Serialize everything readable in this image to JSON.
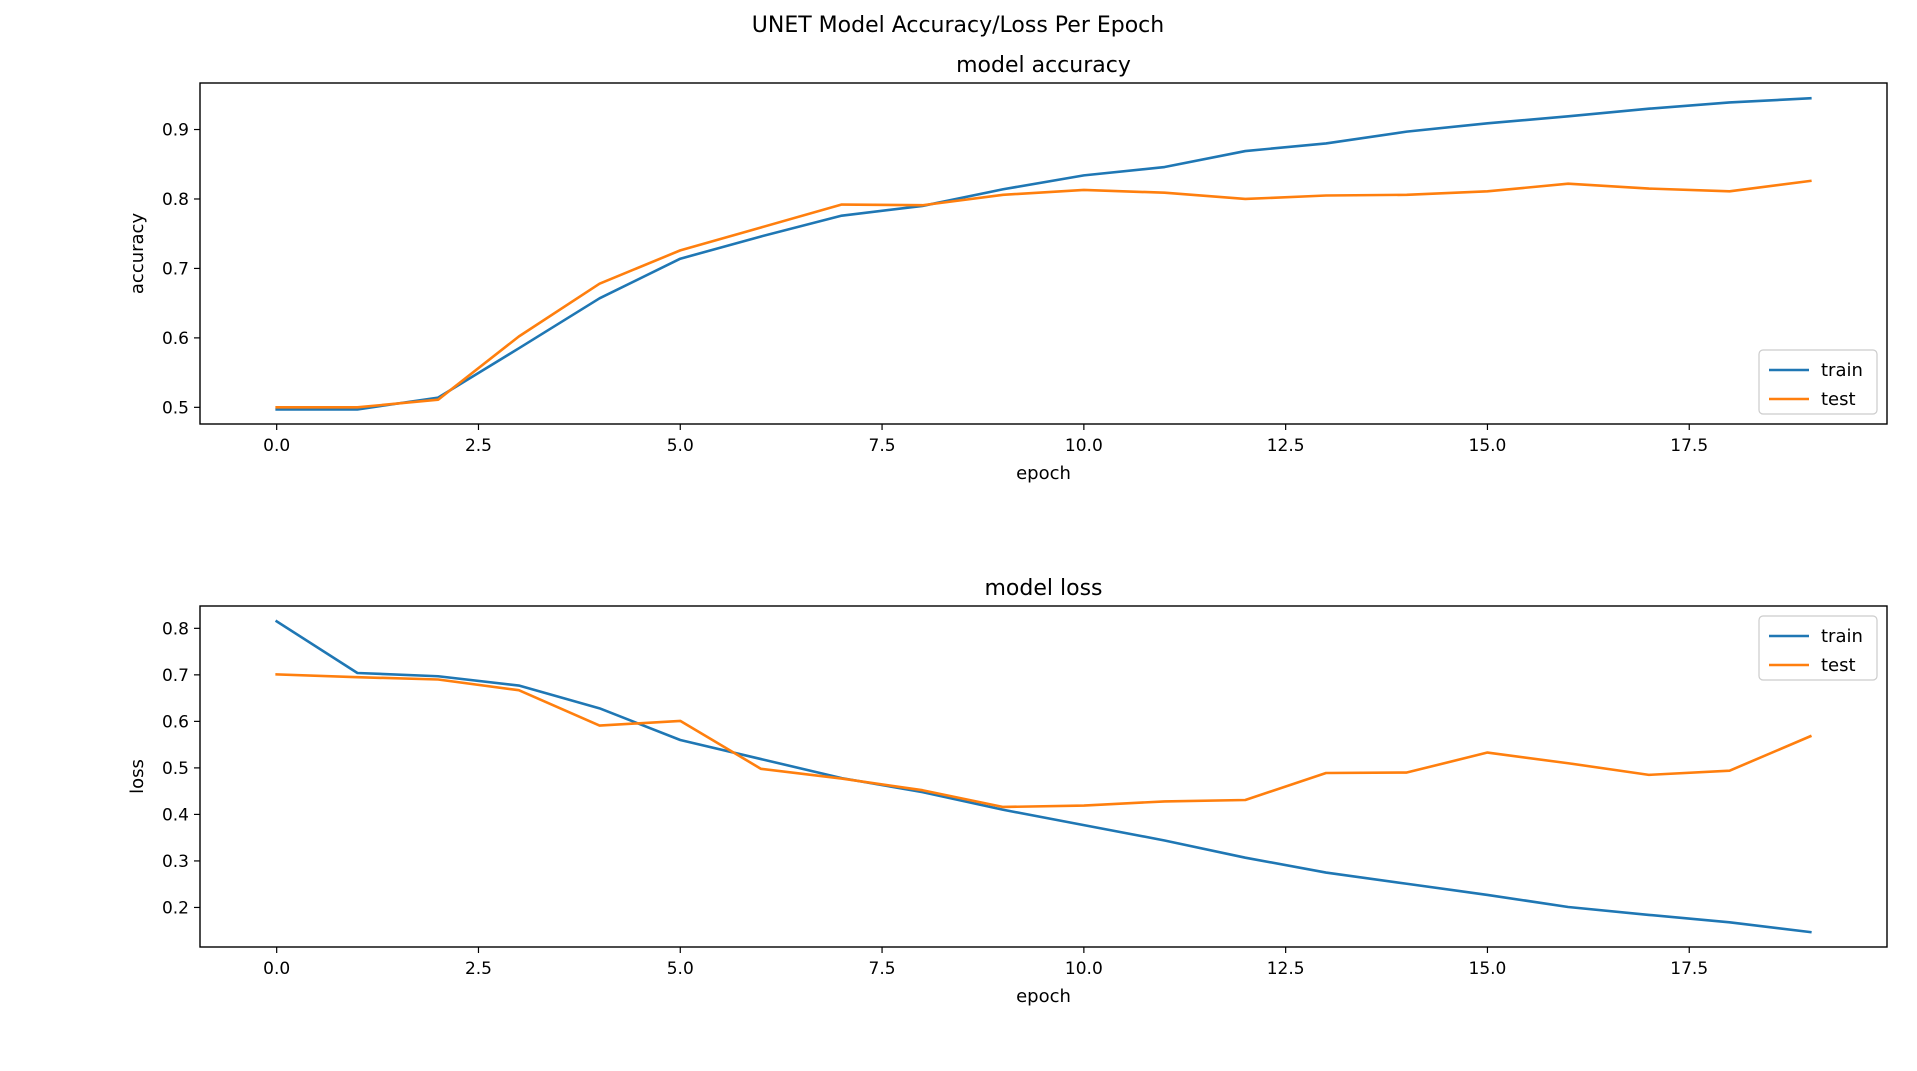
{
  "suptitle": "UNET Model Accuracy/Loss Per Epoch",
  "colors": {
    "train": "#1f77b4",
    "test": "#ff7f0e"
  },
  "chart_data": [
    {
      "type": "line",
      "title": "model accuracy",
      "xlabel": "epoch",
      "ylabel": "accuracy",
      "xlim": [
        -0.95,
        19.95
      ],
      "ylim": [
        0.476,
        0.967
      ],
      "xticks": [
        0.0,
        2.5,
        5.0,
        7.5,
        10.0,
        12.5,
        15.0,
        17.5
      ],
      "xtick_labels": [
        "0.0",
        "2.5",
        "5.0",
        "7.5",
        "10.0",
        "12.5",
        "15.0",
        "17.5"
      ],
      "yticks": [
        0.5,
        0.6,
        0.7,
        0.8,
        0.9
      ],
      "ytick_labels": [
        "0.5",
        "0.6",
        "0.7",
        "0.8",
        "0.9"
      ],
      "legend_position": "lower-right",
      "grid": false,
      "x": [
        0,
        1,
        2,
        3,
        4,
        5,
        6,
        7,
        8,
        9,
        10,
        11,
        12,
        13,
        14,
        15,
        16,
        17,
        18,
        19
      ],
      "series": [
        {
          "name": "train",
          "color": "#1f77b4",
          "values": [
            0.497,
            0.497,
            0.514,
            0.585,
            0.657,
            0.714,
            0.746,
            0.776,
            0.79,
            0.814,
            0.834,
            0.846,
            0.869,
            0.88,
            0.897,
            0.909,
            0.919,
            0.93,
            0.939,
            0.945
          ]
        },
        {
          "name": "test",
          "color": "#ff7f0e",
          "values": [
            0.5,
            0.5,
            0.511,
            0.602,
            0.678,
            0.726,
            0.759,
            0.792,
            0.791,
            0.806,
            0.813,
            0.809,
            0.8,
            0.805,
            0.806,
            0.811,
            0.822,
            0.815,
            0.811,
            0.826
          ]
        }
      ]
    },
    {
      "type": "line",
      "title": "model loss",
      "xlabel": "epoch",
      "ylabel": "loss",
      "xlim": [
        -0.95,
        19.95
      ],
      "ylim": [
        0.115,
        0.848
      ],
      "xticks": [
        0.0,
        2.5,
        5.0,
        7.5,
        10.0,
        12.5,
        15.0,
        17.5
      ],
      "xtick_labels": [
        "0.0",
        "2.5",
        "5.0",
        "7.5",
        "10.0",
        "12.5",
        "15.0",
        "17.5"
      ],
      "yticks": [
        0.2,
        0.3,
        0.4,
        0.5,
        0.6,
        0.7,
        0.8
      ],
      "ytick_labels": [
        "0.2",
        "0.3",
        "0.4",
        "0.5",
        "0.6",
        "0.7",
        "0.8"
      ],
      "legend_position": "upper-right",
      "grid": false,
      "x": [
        0,
        1,
        2,
        3,
        4,
        5,
        6,
        7,
        8,
        9,
        10,
        11,
        12,
        13,
        14,
        15,
        16,
        17,
        18,
        19
      ],
      "series": [
        {
          "name": "train",
          "color": "#1f77b4",
          "values": [
            0.815,
            0.704,
            0.697,
            0.677,
            0.628,
            0.56,
            0.519,
            0.478,
            0.448,
            0.41,
            0.377,
            0.344,
            0.307,
            0.275,
            0.251,
            0.227,
            0.201,
            0.184,
            0.168,
            0.147
          ]
        },
        {
          "name": "test",
          "color": "#ff7f0e",
          "values": [
            0.701,
            0.695,
            0.69,
            0.667,
            0.591,
            0.601,
            0.498,
            0.477,
            0.452,
            0.416,
            0.419,
            0.428,
            0.431,
            0.489,
            0.49,
            0.533,
            0.51,
            0.485,
            0.494,
            0.568
          ]
        }
      ]
    }
  ]
}
